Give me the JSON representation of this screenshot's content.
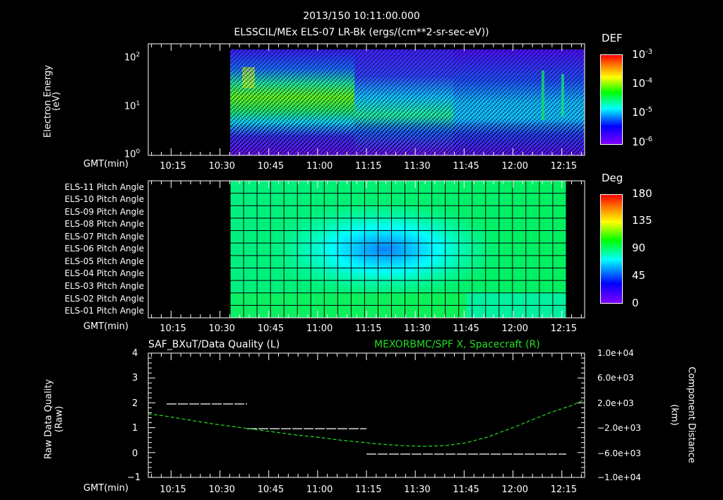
{
  "header": {
    "datetime": "2013/150 10:11:00.000",
    "subtitle": "ELSSCIL/MEx ELS-07 LR-Bk  (ergs/(cm**2-sr-sec-eV))"
  },
  "colors": {
    "background": "#000000",
    "axis": "#ffffff",
    "spacecraft_line": "#22dd22",
    "quality_line": "#ffffff"
  },
  "panel1": {
    "ylabel": "Electron Energy",
    "yunit": "(eV)",
    "colorbar_title": "DEF",
    "colorbar_ticks": [
      "10",
      "10",
      "10",
      "10"
    ],
    "colorbar_exps": [
      "-3",
      "-4",
      "-5",
      "-6"
    ],
    "yticks": [
      "10",
      "10",
      "10"
    ],
    "yexps": [
      "2",
      "1",
      "0"
    ],
    "xaxis_label": "GMT(min)"
  },
  "panel2": {
    "colorbar_title": "Deg",
    "colorbar_ticks": [
      "180",
      "135",
      "90",
      "45",
      "0"
    ],
    "row_labels": [
      "ELS-11 Pitch Angle",
      "ELS-10 Pitch Angle",
      "ELS-09 Pitch Angle",
      "ELS-08 Pitch Angle",
      "ELS-07 Pitch Angle",
      "ELS-06 Pitch Angle",
      "ELS-05 Pitch Angle",
      "ELS-04 Pitch Angle",
      "ELS-03 Pitch Angle",
      "ELS-02 Pitch Angle",
      "ELS-01 Pitch Angle"
    ],
    "xaxis_label": "GMT(min)"
  },
  "panel3": {
    "left_title": "SAF_BXuT/Data Quality (L)",
    "right_title": "MEXORBMC/SPF X, Spacecraft (R)",
    "ylabel_left": "Raw Data Quality",
    "yunit_left": "(Raw)",
    "ylabel_right": "Component Distance",
    "yunit_right": "(km)",
    "yticks_left": [
      "4",
      "3",
      "2",
      "1",
      "0",
      "−1"
    ],
    "yticks_right": [
      "1.0e+04",
      "6.0e+03",
      "2.0e+03",
      "−2.0e+03",
      "−6.0e+03",
      "−1.0e+04"
    ],
    "xaxis_label": "GMT(min)"
  },
  "xticks": [
    "10:15",
    "10:30",
    "10:45",
    "11:00",
    "11:15",
    "11:30",
    "11:45",
    "12:00",
    "12:15"
  ],
  "chart_data": [
    {
      "type": "heatmap",
      "title": "ELSSCIL/MEx ELS-07 LR-Bk (ergs/(cm**2-sr-sec-eV))",
      "xlabel": "GMT(min)",
      "ylabel": "Electron Energy (eV)",
      "yscale": "log",
      "ylim": [
        1,
        150
      ],
      "x_range": [
        "10:08",
        "12:22"
      ],
      "data_start": "10:36",
      "colorbar": {
        "label": "DEF",
        "scale": "log",
        "range": [
          1e-06,
          0.001
        ]
      },
      "x_ticks": [
        "10:15",
        "10:30",
        "10:45",
        "11:00",
        "11:15",
        "11:30",
        "11:45",
        "12:00",
        "12:15"
      ],
      "description": "Peak DEF ~1e-4 (green/yellow) at 30-60 eV from 10:39 to 11:10; band descends to ~5-10 eV from 11:12-11:35 (cyan/green); weaker broad cyan band 5-30 eV after 11:40 with narrow vertical enhancements near 11:55, 12:07 and 12:10."
    },
    {
      "type": "heatmap",
      "title": "Pitch Angle",
      "rows": [
        "ELS-11",
        "ELS-10",
        "ELS-09",
        "ELS-08",
        "ELS-07",
        "ELS-06",
        "ELS-05",
        "ELS-04",
        "ELS-03",
        "ELS-02",
        "ELS-01"
      ],
      "x_range": [
        "10:36",
        "12:13"
      ],
      "colorbar": {
        "label": "Deg",
        "range": [
          0,
          180
        ],
        "ticks": [
          0,
          45,
          90,
          135,
          180
        ]
      },
      "description": "Values ~90-100 deg (green) at edges; minimum ~40-50 deg (blue) around 11:20 for ELS-07/ELS-06; ELS-01 reaches ~110 deg near 11:20; later times ELS-11..08 ~100 deg, ELS-03..01 ~75 deg."
    },
    {
      "type": "line",
      "title": "SAF_BXuT/Data Quality (L) & MEXORBMC/SPF X, Spacecraft (R)",
      "xlabel": "GMT(min)",
      "x_ticks": [
        "10:15",
        "10:30",
        "10:45",
        "11:00",
        "11:15",
        "11:30",
        "11:45",
        "12:00",
        "12:15"
      ],
      "series": [
        {
          "name": "Raw Data Quality",
          "axis": "left",
          "ylim": [
            -1,
            4
          ],
          "color": "#ffffff",
          "segments": [
            {
              "x": [
                "10:17",
                "10:41"
              ],
              "y": 2
            },
            {
              "x": [
                "10:41",
                "11:16"
              ],
              "y": 1
            },
            {
              "x": [
                "11:16",
                "12:14"
              ],
              "y": 0
            }
          ]
        },
        {
          "name": "MEXORBMC/SPF X, Spacecraft",
          "axis": "right",
          "ylim": [
            -10000,
            10000
          ],
          "color": "#22dd22",
          "x": [
            "10:08",
            "10:15",
            "10:30",
            "10:45",
            "11:00",
            "11:15",
            "11:30",
            "11:38",
            "11:45",
            "12:00",
            "12:15",
            "12:22"
          ],
          "y": [
            460,
            0,
            -1100,
            -2200,
            -3200,
            -4000,
            -4500,
            -4600,
            -4400,
            -2500,
            700,
            1700
          ]
        }
      ]
    }
  ]
}
